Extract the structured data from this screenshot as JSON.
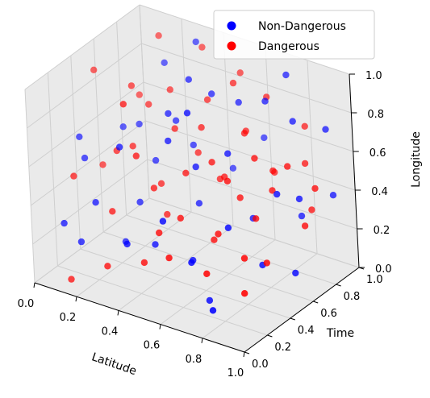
{
  "chart_data": {
    "type": "scatter",
    "projection": "3d",
    "xlabel": "Latitude",
    "ylabel": "Time",
    "zlabel": "Longitude",
    "xlim": [
      0,
      1
    ],
    "ylim": [
      0,
      1
    ],
    "zlim": [
      0,
      1
    ],
    "x_ticks": [
      "0.0",
      "0.2",
      "0.4",
      "0.6",
      "0.8",
      "1.0"
    ],
    "y_ticks": [
      "0.0",
      "0.2",
      "0.4",
      "0.6",
      "0.8",
      "1.0"
    ],
    "z_ticks": [
      "0.0",
      "0.2",
      "0.4",
      "0.6",
      "0.8",
      "1.0"
    ],
    "grid": true,
    "legend_position": "top-right",
    "colors": {
      "Non-Dangerous": "#1f2bd6",
      "Dangerous": "#cc0a12",
      "pane": "#eaeaea",
      "grid": "#cfcfcf"
    },
    "series": [
      {
        "name": "Non-Dangerous",
        "marker_color": "#0000ff",
        "points": [
          [
            0.05,
            0.35,
            0.62
          ],
          [
            0.1,
            0.3,
            0.55
          ],
          [
            0.15,
            0.55,
            0.62
          ],
          [
            0.2,
            0.6,
            0.63
          ],
          [
            0.3,
            0.25,
            0.7
          ],
          [
            0.35,
            0.65,
            0.68
          ],
          [
            0.4,
            0.5,
            0.8
          ],
          [
            0.45,
            0.4,
            0.72
          ],
          [
            0.5,
            0.7,
            0.85
          ],
          [
            0.55,
            0.45,
            0.6
          ],
          [
            0.6,
            0.75,
            0.82
          ],
          [
            0.65,
            0.55,
            0.66
          ],
          [
            0.7,
            0.8,
            0.84
          ],
          [
            0.75,
            0.35,
            0.4
          ],
          [
            0.8,
            0.85,
            0.75
          ],
          [
            0.85,
            0.6,
            0.5
          ],
          [
            0.9,
            0.7,
            0.45
          ],
          [
            0.95,
            0.9,
            0.4
          ],
          [
            0.2,
            0.2,
            0.4
          ],
          [
            0.3,
            0.4,
            0.35
          ],
          [
            0.45,
            0.25,
            0.25
          ],
          [
            0.5,
            0.55,
            0.35
          ],
          [
            0.6,
            0.3,
            0.2
          ],
          [
            0.7,
            0.65,
            0.3
          ],
          [
            0.85,
            0.45,
            0.2
          ],
          [
            0.4,
            0.1,
            0.3
          ],
          [
            0.55,
            0.15,
            0.45
          ],
          [
            0.65,
            0.2,
            0.25
          ],
          [
            0.75,
            0.9,
            0.95
          ],
          [
            0.9,
            0.95,
            0.7
          ],
          [
            0.25,
            0.75,
            0.9
          ],
          [
            0.35,
            0.85,
            1.0
          ],
          [
            0.1,
            0.1,
            0.3
          ],
          [
            0.8,
            0.1,
            0.1
          ],
          [
            0.95,
            0.55,
            0.15
          ],
          [
            0.6,
            0.95,
            0.55
          ],
          [
            0.5,
            0.85,
            0.4
          ],
          [
            0.4,
            0.7,
            0.55
          ],
          [
            0.3,
            0.55,
            0.5
          ],
          [
            0.15,
            0.15,
            0.2
          ],
          [
            0.7,
            0.25,
            0.05
          ],
          [
            0.85,
            0.8,
            0.3
          ],
          [
            0.45,
            0.6,
            0.95
          ],
          [
            0.55,
            0.4,
            0.9
          ],
          [
            0.25,
            0.35,
            0.15
          ]
        ]
      },
      {
        "name": "Dangerous",
        "marker_color": "#ff0000",
        "points": [
          [
            0.05,
            0.5,
            0.9
          ],
          [
            0.1,
            0.45,
            0.45
          ],
          [
            0.15,
            0.7,
            0.72
          ],
          [
            0.2,
            0.4,
            0.58
          ],
          [
            0.25,
            0.6,
            0.75
          ],
          [
            0.3,
            0.7,
            0.8
          ],
          [
            0.35,
            0.3,
            0.65
          ],
          [
            0.4,
            0.55,
            0.7
          ],
          [
            0.45,
            0.75,
            0.78
          ],
          [
            0.5,
            0.6,
            0.72
          ],
          [
            0.55,
            0.8,
            0.88
          ],
          [
            0.6,
            0.5,
            0.62
          ],
          [
            0.65,
            0.7,
            0.7
          ],
          [
            0.7,
            0.45,
            0.58
          ],
          [
            0.75,
            0.75,
            0.52
          ],
          [
            0.8,
            0.65,
            0.48
          ],
          [
            0.85,
            0.7,
            0.6
          ],
          [
            0.9,
            0.8,
            0.35
          ],
          [
            0.95,
            0.75,
            0.5
          ],
          [
            0.2,
            0.8,
            1.0
          ],
          [
            0.35,
            0.9,
            0.95
          ],
          [
            0.5,
            0.95,
            0.85
          ],
          [
            0.65,
            0.9,
            0.8
          ],
          [
            0.8,
            0.95,
            0.68
          ],
          [
            0.1,
            0.2,
            0.5
          ],
          [
            0.25,
            0.25,
            0.35
          ],
          [
            0.4,
            0.35,
            0.48
          ],
          [
            0.55,
            0.3,
            0.4
          ],
          [
            0.7,
            0.35,
            0.35
          ],
          [
            0.85,
            0.3,
            0.3
          ],
          [
            0.3,
            0.1,
            0.15
          ],
          [
            0.45,
            0.15,
            0.2
          ],
          [
            0.6,
            0.1,
            0.3
          ],
          [
            0.75,
            0.15,
            0.25
          ],
          [
            0.9,
            0.2,
            0.18
          ],
          [
            0.15,
            0.05,
            0.05
          ],
          [
            0.5,
            0.45,
            0.55
          ],
          [
            0.6,
            0.6,
            0.5
          ],
          [
            0.7,
            0.55,
            0.45
          ],
          [
            0.8,
            0.5,
            0.4
          ],
          [
            0.4,
            0.45,
            0.3
          ],
          [
            0.55,
            0.65,
            0.45
          ],
          [
            0.65,
            0.4,
            0.28
          ],
          [
            0.35,
            0.5,
            0.42
          ],
          [
            0.45,
            0.65,
            0.55
          ],
          [
            0.75,
            0.6,
            0.65
          ],
          [
            0.85,
            0.85,
            0.55
          ],
          [
            0.95,
            0.65,
            0.35
          ],
          [
            0.25,
            0.45,
            0.6
          ],
          [
            0.3,
            0.3,
            0.9
          ],
          [
            0.6,
            0.8,
            0.65
          ],
          [
            0.7,
            0.85,
            0.45
          ],
          [
            0.5,
            0.2,
            0.35
          ],
          [
            0.2,
            0.55,
            0.85
          ],
          [
            0.9,
            0.4,
            0.25
          ]
        ]
      }
    ]
  }
}
